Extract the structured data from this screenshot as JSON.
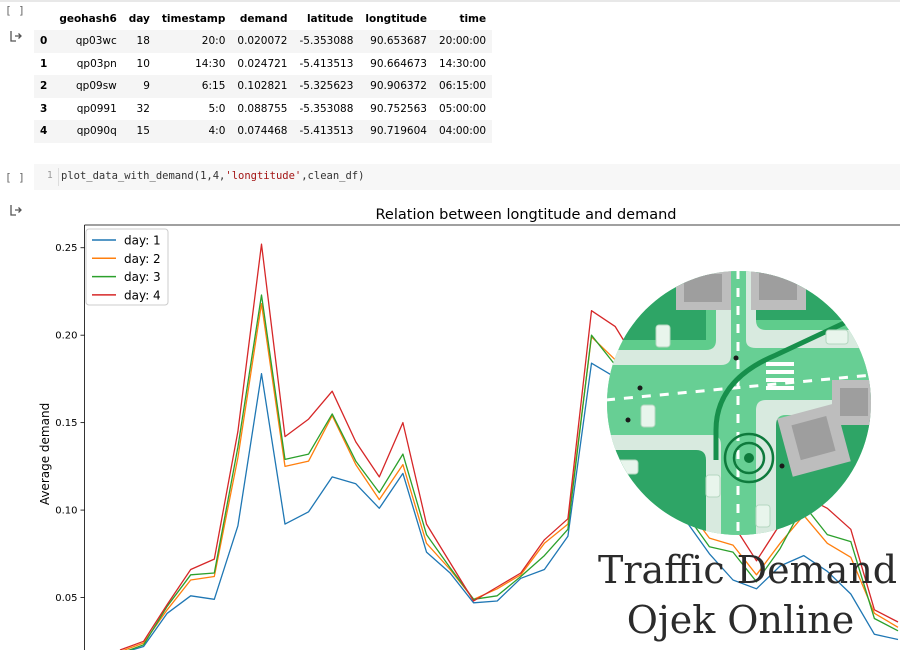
{
  "notebook": {
    "cell1_bracket": "[ ]",
    "cell2_bracket": "[ ]",
    "cell2_line_number": "1",
    "cell2_code": {
      "prefix": "plot_data_with_demand(1,4,",
      "string_arg": "'longtitude'",
      "suffix": ",clean_df)"
    }
  },
  "dataframe": {
    "columns": [
      "",
      "geohash6",
      "day",
      "timestamp",
      "demand",
      "latitude",
      "longtitude",
      "time"
    ],
    "rows": [
      [
        "0",
        "qp03wc",
        "18",
        "20:0",
        "0.020072",
        "-5.353088",
        "90.653687",
        "20:00:00"
      ],
      [
        "1",
        "qp03pn",
        "10",
        "14:30",
        "0.024721",
        "-5.413513",
        "90.664673",
        "14:30:00"
      ],
      [
        "2",
        "qp09sw",
        "9",
        "6:15",
        "0.102821",
        "-5.325623",
        "90.906372",
        "06:15:00"
      ],
      [
        "3",
        "qp0991",
        "32",
        "5:0",
        "0.088755",
        "-5.353088",
        "90.752563",
        "05:00:00"
      ],
      [
        "4",
        "qp090q",
        "15",
        "4:0",
        "0.074468",
        "-5.413513",
        "90.719604",
        "04:00:00"
      ]
    ]
  },
  "overlay": {
    "line1": "Traffic Demand",
    "line2": "Ojek Online",
    "illustration": "city-intersection-map-icon"
  },
  "chart_data": {
    "type": "line",
    "title": "Relation between longtitude and demand",
    "xlabel": "",
    "ylabel": "Average demand",
    "ylim": [
      0.02,
      0.263
    ],
    "yticks": [
      0.05,
      0.1,
      0.15,
      0.2,
      0.25
    ],
    "ytick_labels": [
      "0.05",
      "0.10",
      "0.15",
      "0.20",
      "0.25"
    ],
    "grid": false,
    "legend_position": "top-left",
    "x": [
      0,
      1,
      2,
      3,
      4,
      5,
      6,
      7,
      8,
      9,
      10,
      11,
      12,
      13,
      14,
      15,
      16,
      17,
      18,
      19,
      20,
      21,
      22,
      23,
      24,
      25,
      26,
      27,
      28,
      29,
      30,
      31,
      32,
      33
    ],
    "series": [
      {
        "name": "day: 1",
        "color": "#1f77b4",
        "values": [
          0.018,
          0.022,
          0.041,
          0.051,
          0.049,
          0.091,
          0.178,
          0.092,
          0.099,
          0.119,
          0.115,
          0.101,
          0.121,
          0.076,
          0.064,
          0.047,
          0.048,
          0.061,
          0.066,
          0.085,
          0.184,
          0.176,
          0.157,
          0.112,
          0.094,
          0.075,
          0.06,
          0.055,
          0.068,
          0.074,
          0.065,
          0.052,
          0.029,
          0.026
        ]
      },
      {
        "name": "day: 2",
        "color": "#ff7f0e",
        "values": [
          0.019,
          0.024,
          0.043,
          0.06,
          0.062,
          0.13,
          0.218,
          0.125,
          0.128,
          0.154,
          0.126,
          0.106,
          0.126,
          0.081,
          0.066,
          0.049,
          0.055,
          0.063,
          0.081,
          0.092,
          0.199,
          0.186,
          0.167,
          0.129,
          0.102,
          0.084,
          0.08,
          0.063,
          0.081,
          0.097,
          0.081,
          0.073,
          0.041,
          0.033
        ]
      },
      {
        "name": "day: 3",
        "color": "#2ca02c",
        "values": [
          0.018,
          0.023,
          0.045,
          0.063,
          0.064,
          0.136,
          0.223,
          0.129,
          0.132,
          0.155,
          0.128,
          0.11,
          0.132,
          0.086,
          0.067,
          0.049,
          0.051,
          0.062,
          0.074,
          0.089,
          0.2,
          0.183,
          0.163,
          0.126,
          0.098,
          0.079,
          0.076,
          0.059,
          0.078,
          0.103,
          0.086,
          0.082,
          0.038,
          0.031
        ]
      },
      {
        "name": "day: 4",
        "color": "#d62728",
        "values": [
          0.02,
          0.025,
          0.046,
          0.066,
          0.072,
          0.145,
          0.252,
          0.142,
          0.152,
          0.168,
          0.139,
          0.119,
          0.15,
          0.092,
          0.07,
          0.048,
          0.056,
          0.064,
          0.083,
          0.095,
          0.214,
          0.205,
          0.183,
          0.144,
          0.112,
          0.097,
          0.092,
          0.071,
          0.092,
          0.108,
          0.101,
          0.089,
          0.043,
          0.036
        ]
      }
    ]
  }
}
